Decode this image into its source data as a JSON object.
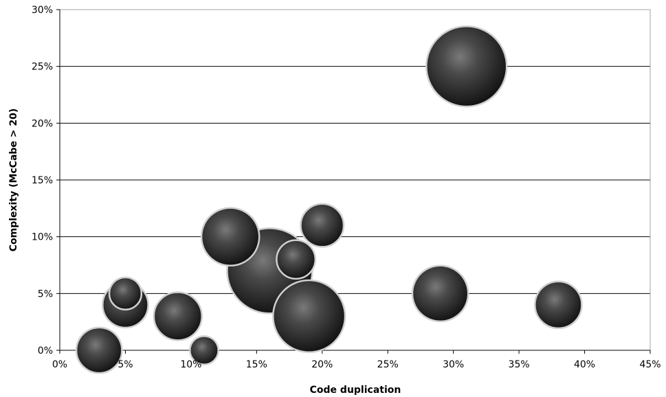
{
  "chart_data": {
    "type": "bubble",
    "title": "",
    "xlabel": "Code duplication",
    "ylabel": "Complexity (McCabe > 20)",
    "xlim": [
      0,
      45
    ],
    "ylim": [
      0,
      30
    ],
    "x_ticks": [
      "0%",
      "5%",
      "10%",
      "15%",
      "20%",
      "25%",
      "30%",
      "35%",
      "40%",
      "45%"
    ],
    "y_ticks": [
      "0%",
      "5%",
      "10%",
      "15%",
      "20%",
      "25%",
      "30%"
    ],
    "grid": "horizontal",
    "legend": "none",
    "bubble_color": "#3a3a3a",
    "bubble_outline": "#d0d0d0",
    "points": [
      {
        "x": 31,
        "y": 25,
        "size": 56
      },
      {
        "x": 16,
        "y": 7,
        "size": 63
      },
      {
        "x": 19,
        "y": 3,
        "size": 45
      },
      {
        "x": 13,
        "y": 10,
        "size": 29
      },
      {
        "x": 29,
        "y": 5,
        "size": 27
      },
      {
        "x": 9,
        "y": 3,
        "size": 20
      },
      {
        "x": 5,
        "y": 4,
        "size": 18
      },
      {
        "x": 38,
        "y": 4,
        "size": 19
      },
      {
        "x": 20,
        "y": 11,
        "size": 16
      },
      {
        "x": 3,
        "y": 0,
        "size": 18
      },
      {
        "x": 18,
        "y": 8,
        "size": 13
      },
      {
        "x": 5,
        "y": 5,
        "size": 9
      },
      {
        "x": 11,
        "y": 0,
        "size": 7
      }
    ]
  }
}
